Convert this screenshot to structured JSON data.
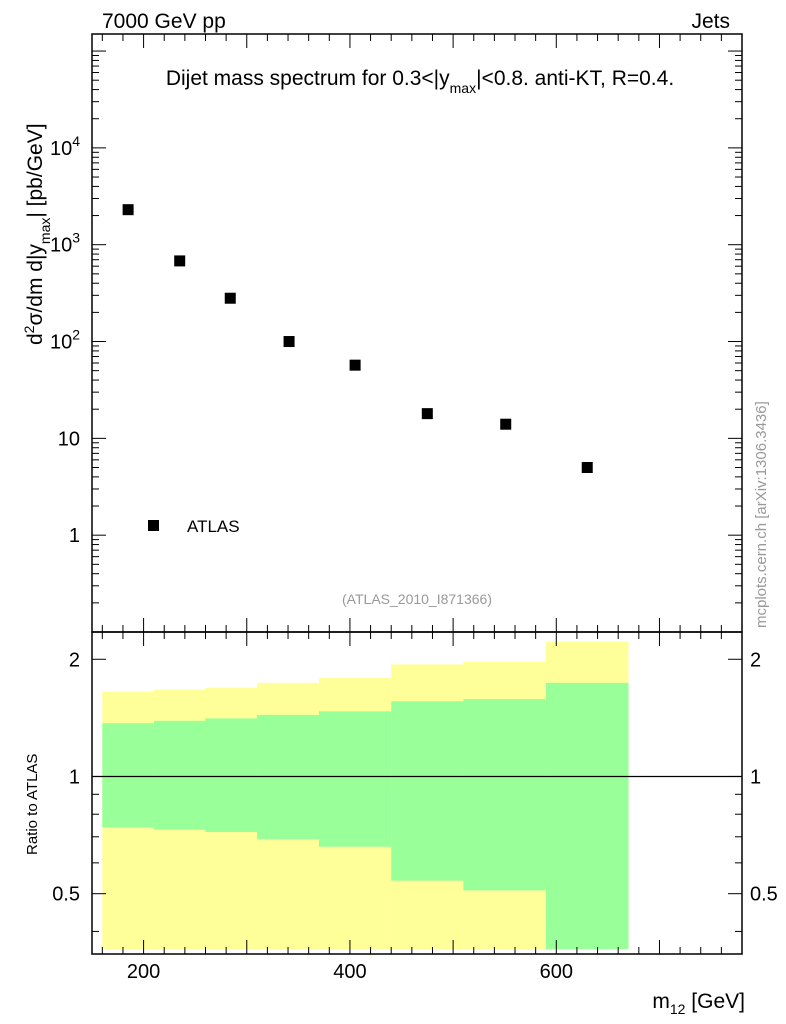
{
  "header": {
    "left": "7000 GeV pp",
    "right": "Jets"
  },
  "side_label": "mcplots.cern.ch [arXiv:1306.3436]",
  "chart_data": [
    {
      "type": "scatter",
      "panel": "main",
      "title_parts": {
        "pre": "Dijet mass spectrum for 0.3<|y",
        "sub": "max",
        "post": "|<0.8.  anti-KT, R=0.4."
      },
      "ylabel_parts": {
        "a": "d",
        "sup": "2",
        "b": "σ/dm d|y",
        "sub": "max",
        "c": "| [pb/GeV]"
      },
      "yscale": "log",
      "ylim": [
        0.1,
        150000
      ],
      "xlim": [
        150,
        780
      ],
      "y_ticks": [
        {
          "value": 1,
          "base": "1",
          "exp": ""
        },
        {
          "value": 10,
          "base": "10",
          "exp": ""
        },
        {
          "value": 100,
          "base": "10",
          "exp": "2"
        },
        {
          "value": 1000,
          "base": "10",
          "exp": "3"
        },
        {
          "value": 10000,
          "base": "10",
          "exp": "4"
        }
      ],
      "series": [
        {
          "name": "ATLAS",
          "marker": "square",
          "color": "#000000",
          "x": [
            185,
            235,
            284,
            341,
            405,
            475,
            551,
            630
          ],
          "y": [
            2300,
            680,
            280,
            100,
            57,
            18,
            14,
            5
          ]
        }
      ],
      "legend": {
        "label": "ATLAS",
        "position": "bottom-left"
      },
      "annotation": "(ATLAS_2010_I871366)"
    },
    {
      "type": "area",
      "panel": "ratio",
      "ylabel": "Ratio to ATLAS",
      "xlabel_parts": {
        "a": "m",
        "sub": "12",
        "b": " [GeV]"
      },
      "xlim": [
        150,
        780
      ],
      "ylim": [
        0.35,
        2.35
      ],
      "x_ticks": [
        200,
        400,
        600
      ],
      "y_ticks": [
        {
          "value": 0.5,
          "label": "0.5"
        },
        {
          "value": 1,
          "label": "1"
        },
        {
          "value": 2,
          "label": "2"
        }
      ],
      "reference_line": 1,
      "bin_edges": [
        160,
        210,
        260,
        310,
        370,
        440,
        510,
        590,
        670
      ],
      "bands": [
        {
          "name": "outer",
          "color": "#ffff99",
          "low": [
            0.36,
            0.36,
            0.36,
            0.36,
            0.36,
            0.36,
            0.36,
            0.36
          ],
          "high": [
            1.65,
            1.67,
            1.69,
            1.74,
            1.79,
            1.94,
            1.97,
            2.22
          ]
        },
        {
          "name": "inner",
          "color": "#99ff99",
          "low": [
            0.74,
            0.73,
            0.72,
            0.69,
            0.66,
            0.54,
            0.51,
            0.36
          ],
          "high": [
            1.37,
            1.39,
            1.41,
            1.44,
            1.47,
            1.56,
            1.58,
            1.74
          ]
        }
      ]
    }
  ]
}
